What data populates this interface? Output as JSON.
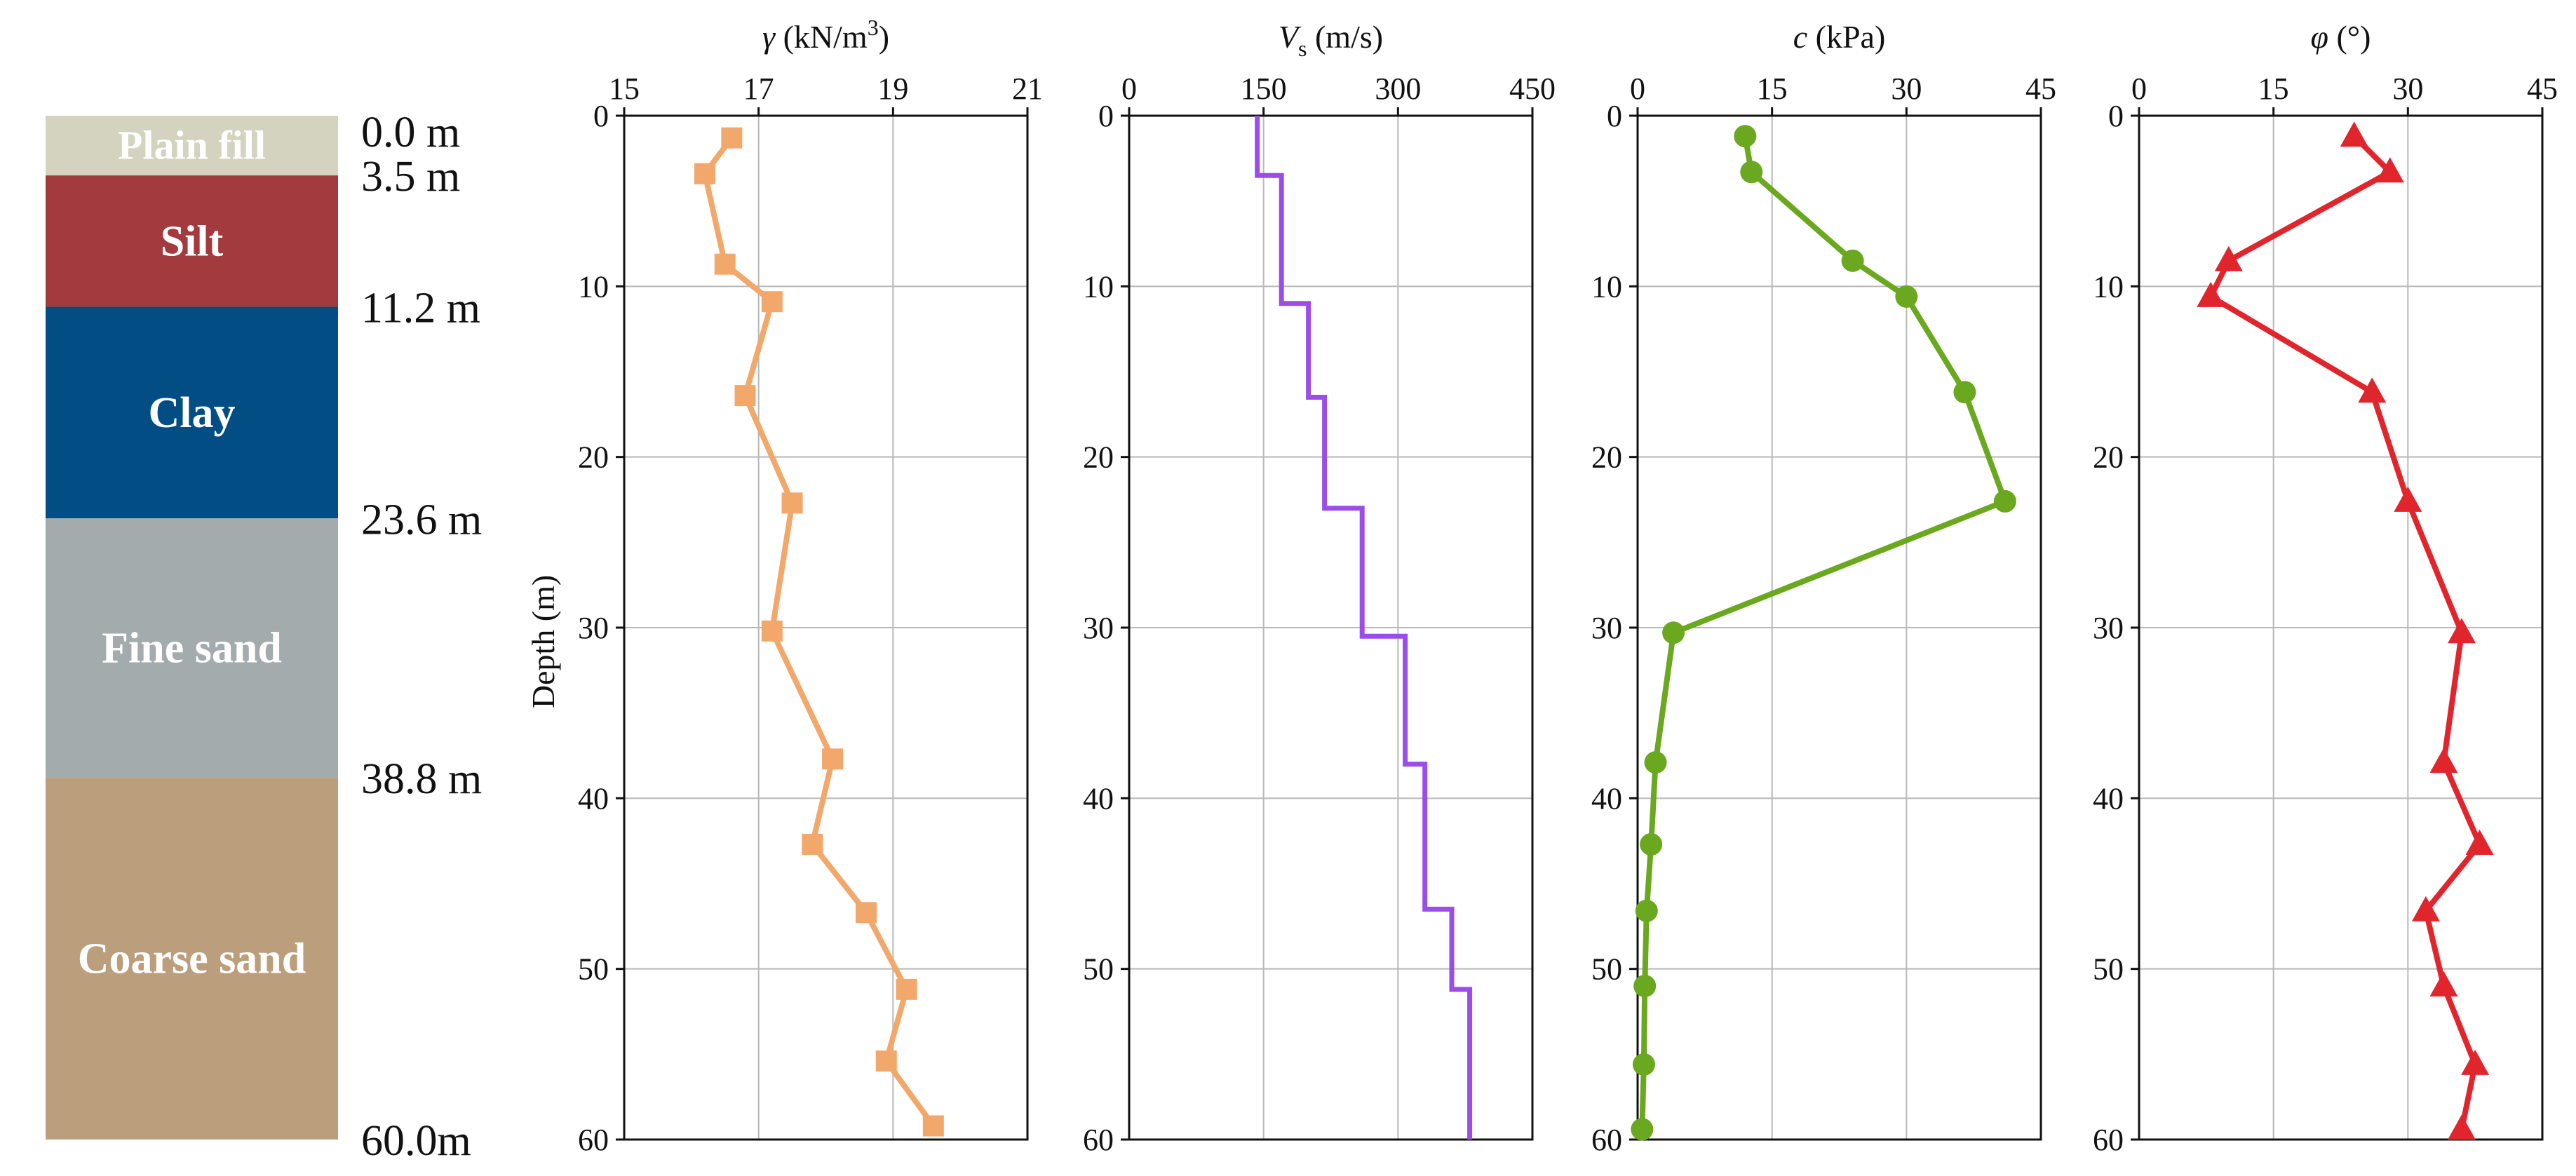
{
  "stratigraphy": {
    "layers": [
      {
        "name": "Plain fill",
        "top": 0.0,
        "bottom": 3.5,
        "color": "#d3d3bf"
      },
      {
        "name": "Silt",
        "top": 3.5,
        "bottom": 11.2,
        "color": "#a33a3d"
      },
      {
        "name": "Clay",
        "top": 11.2,
        "bottom": 23.6,
        "color": "#024e84"
      },
      {
        "name": "Fine sand",
        "top": 23.6,
        "bottom": 38.8,
        "color": "#a3abac"
      },
      {
        "name": "Coarse sand",
        "top": 38.8,
        "bottom": 60.0,
        "color": "#bb9e7b"
      }
    ],
    "depth_marks": [
      {
        "label": "0.0 m",
        "depth": 0.0
      },
      {
        "label": "3.5 m",
        "depth": 3.5
      },
      {
        "label": "11.2 m",
        "depth": 11.2
      },
      {
        "label": "23.6 m",
        "depth": 23.6
      },
      {
        "label": "38.8 m",
        "depth": 38.8
      },
      {
        "label": "60.0m",
        "depth": 60.0
      }
    ]
  },
  "chart_data": [
    {
      "id": "gamma",
      "type": "line",
      "title": "γ (kN/m³)",
      "title_parts": {
        "sym": "γ",
        "unit_pre": " (kN/m",
        "sup": "3",
        "unit_post": ")"
      },
      "ylabel": "Depth (m)",
      "xlim": [
        15,
        21
      ],
      "xticks": [
        15,
        17,
        19,
        21
      ],
      "ylim": [
        0,
        60
      ],
      "yticks": [
        0,
        10,
        20,
        30,
        40,
        50,
        60
      ],
      "color": "#f2a86b",
      "marker": "square",
      "step": false,
      "points": [
        [
          16.6,
          1.3
        ],
        [
          16.2,
          3.4
        ],
        [
          16.5,
          8.7
        ],
        [
          17.2,
          10.9
        ],
        [
          16.8,
          16.4
        ],
        [
          17.5,
          22.7
        ],
        [
          17.2,
          30.2
        ],
        [
          18.1,
          37.7
        ],
        [
          17.8,
          42.7
        ],
        [
          18.6,
          46.7
        ],
        [
          19.2,
          51.2
        ],
        [
          18.9,
          55.4
        ],
        [
          19.6,
          59.2
        ]
      ]
    },
    {
      "id": "vs",
      "type": "line",
      "title": "Vs (m/s)",
      "title_parts": {
        "sym": "V",
        "sub": "s",
        "unit_post": " (m/s)"
      },
      "xlim": [
        0,
        450
      ],
      "xticks": [
        0,
        150,
        300,
        450
      ],
      "ylim": [
        0,
        60
      ],
      "yticks": [
        0,
        10,
        20,
        30,
        40,
        50,
        60
      ],
      "color": "#9b4de8",
      "marker": "none",
      "step": true,
      "points": [
        [
          143,
          0
        ],
        [
          143,
          3.5
        ],
        [
          170,
          3.5
        ],
        [
          170,
          11
        ],
        [
          200,
          11
        ],
        [
          200,
          16.5
        ],
        [
          218,
          16.5
        ],
        [
          218,
          23
        ],
        [
          260,
          23
        ],
        [
          260,
          30.5
        ],
        [
          308,
          30.5
        ],
        [
          308,
          38
        ],
        [
          330,
          38
        ],
        [
          330,
          46.5
        ],
        [
          360,
          46.5
        ],
        [
          360,
          51.2
        ],
        [
          380,
          51.2
        ],
        [
          380,
          60
        ]
      ]
    },
    {
      "id": "c",
      "type": "line",
      "title": "c (kPa)",
      "title_parts": {
        "sym": "c",
        "unit_post": " (kPa)"
      },
      "xlim": [
        0,
        45
      ],
      "xticks": [
        0,
        15,
        30,
        45
      ],
      "ylim": [
        0,
        60
      ],
      "yticks": [
        0,
        10,
        20,
        30,
        40,
        50,
        60
      ],
      "color": "#6aa81f",
      "marker": "circle",
      "step": false,
      "points": [
        [
          12,
          1.2
        ],
        [
          12.7,
          3.3
        ],
        [
          24,
          8.5
        ],
        [
          30,
          10.6
        ],
        [
          36.5,
          16.2
        ],
        [
          41,
          22.6
        ],
        [
          4,
          30.3
        ],
        [
          2,
          37.9
        ],
        [
          1.5,
          42.7
        ],
        [
          1,
          46.6
        ],
        [
          0.8,
          51
        ],
        [
          0.7,
          55.6
        ],
        [
          0.5,
          59.4
        ]
      ]
    },
    {
      "id": "phi",
      "type": "line",
      "title": "φ (°)",
      "title_parts": {
        "sym": "φ",
        "unit_post": " (°)"
      },
      "xlim": [
        0,
        45
      ],
      "xticks": [
        0,
        15,
        30,
        45
      ],
      "ylim": [
        0,
        60
      ],
      "yticks": [
        0,
        10,
        20,
        30,
        40,
        50,
        60
      ],
      "color": "#e0252c",
      "marker": "triangle",
      "step": false,
      "points": [
        [
          24,
          1.2
        ],
        [
          28,
          3.3
        ],
        [
          10,
          8.5
        ],
        [
          8,
          10.6
        ],
        [
          26,
          16.2
        ],
        [
          30,
          22.6
        ],
        [
          36,
          30.3
        ],
        [
          34,
          37.9
        ],
        [
          38,
          42.7
        ],
        [
          32,
          46.6
        ],
        [
          34,
          51
        ],
        [
          37.5,
          55.6
        ],
        [
          36,
          59.4
        ]
      ]
    }
  ]
}
